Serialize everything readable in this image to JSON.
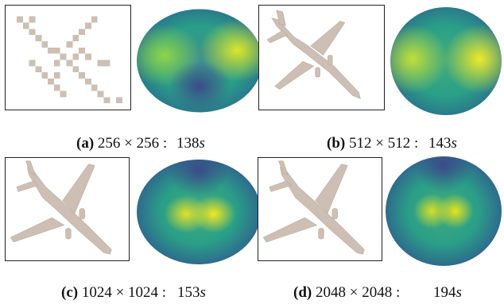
{
  "figure": {
    "panels": [
      {
        "label": "(a)",
        "res": "256 × 256 :",
        "time_value": "138",
        "time_unit": "s"
      },
      {
        "label": "(b)",
        "res": "512 × 512 :",
        "time_value": "143",
        "time_unit": "s"
      },
      {
        "label": "(c)",
        "res": "1024 × 1024 :",
        "time_value": "153",
        "time_unit": "s"
      },
      {
        "label": "(d)",
        "res": "2048 × 2048 :",
        "time_value": "194",
        "time_unit": "s"
      }
    ]
  },
  "colors": {
    "plane": "#cdbfb3",
    "plane_shade": "#b9aa9d",
    "disk_edge": "#2a6f8e",
    "disk_mid": "#28a088",
    "disk_high": "#dde52a",
    "disk_low": "#3b4b8a"
  }
}
